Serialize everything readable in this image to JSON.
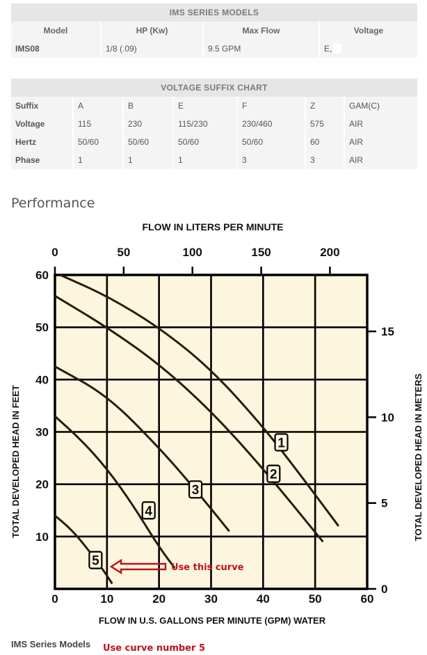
{
  "models_table": {
    "title": "IMS SERIES MODELS",
    "headers": [
      "Model",
      "HP (Kw)",
      "Max Flow",
      "Voltage"
    ],
    "row": [
      "IMS08",
      "1/8 (.09)",
      "9.5 GPM",
      "E,"
    ]
  },
  "suffix_table": {
    "title": "VOLTAGE SUFFIX CHART",
    "rows": [
      [
        "Suffix",
        "A",
        "B",
        "E",
        "F",
        "Z",
        "GAM(C)"
      ],
      [
        "Voltage",
        "115",
        "230",
        "115/230",
        "230/460",
        "575",
        "AIR"
      ],
      [
        "Hertz",
        "50/60",
        "50/60",
        "50/60",
        "50/60",
        "60",
        "AIR"
      ],
      [
        "Phase",
        "1",
        "1",
        "1",
        "3",
        "3",
        "AIR"
      ]
    ]
  },
  "performance_title": "Performance",
  "caption": "IMS Series Models",
  "caption_note": "Use curve number 5",
  "chart_data": {
    "type": "line",
    "title": "FLOW IN LITERS PER MINUTE",
    "xlabel": "FLOW IN U.S. GALLONS PER MINUTE (GPM) WATER",
    "ylabel": "TOTAL DEVELOPED HEAD IN FEET",
    "y2label": "TOTAL DEVELOPED HEAD IN METERS",
    "xlim": [
      0,
      60
    ],
    "ylim": [
      0,
      60
    ],
    "xticks": [
      0,
      10,
      20,
      30,
      40,
      50,
      60
    ],
    "yticks": [
      10,
      20,
      30,
      40,
      50,
      60
    ],
    "x2ticks": [
      0,
      50,
      100,
      150,
      200
    ],
    "y2ticks": [
      0,
      5,
      10,
      15
    ],
    "grid": true,
    "background": "#fdf6de",
    "series": [
      {
        "name": "1",
        "x": [
          1,
          10,
          20,
          30,
          40,
          47,
          54.5
        ],
        "y": [
          60,
          56,
          50,
          42,
          31,
          22,
          12
        ]
      },
      {
        "name": "2",
        "x": [
          0,
          10,
          20,
          30,
          40,
          51.5
        ],
        "y": [
          56,
          50,
          43,
          34,
          23,
          9
        ]
      },
      {
        "name": "3",
        "x": [
          0,
          10,
          20,
          27,
          33.5
        ],
        "y": [
          42.5,
          37,
          27,
          19,
          11
        ]
      },
      {
        "name": "4",
        "x": [
          0,
          5,
          10,
          15,
          20,
          23
        ],
        "y": [
          33,
          28.5,
          23,
          16,
          8,
          4
        ]
      },
      {
        "name": "5",
        "x": [
          0,
          3,
          6,
          9,
          11
        ],
        "y": [
          14,
          11.5,
          8,
          4,
          1
        ]
      }
    ],
    "annotation": {
      "text": "Use this curve",
      "color": "#c0111d"
    }
  }
}
